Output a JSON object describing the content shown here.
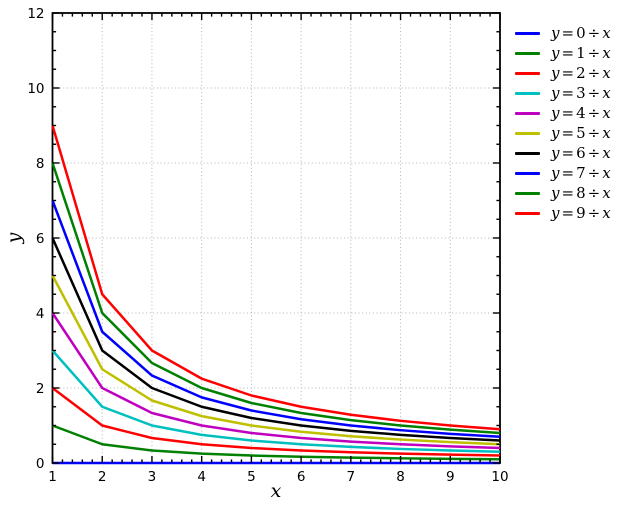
{
  "figure": {
    "background": "#ffffff",
    "xlabel": "x",
    "ylabel": "y"
  },
  "chart_data": {
    "type": "line",
    "title": "",
    "xlabel": "x",
    "ylabel": "y",
    "xlim": [
      1,
      10
    ],
    "ylim": [
      0,
      12
    ],
    "x": [
      1,
      2,
      3,
      4,
      5,
      6,
      7,
      8,
      9,
      10
    ],
    "x_major_ticks": [
      1,
      2,
      3,
      4,
      5,
      6,
      7,
      8,
      9,
      10
    ],
    "x_tick_labels": [
      "1",
      "2",
      "3",
      "4",
      "5",
      "6",
      "7",
      "8",
      "9",
      "10"
    ],
    "y_major_ticks": [
      0,
      2,
      4,
      6,
      8,
      10,
      12
    ],
    "y_tick_labels": [
      "0",
      "2",
      "4",
      "6",
      "8",
      "10",
      "12"
    ],
    "x_minor_step": 0.2,
    "y_minor_step": 0.5,
    "grid": true,
    "grid_color": "#b4b4b4",
    "spine_color": "#000000",
    "tick_color": "#000000",
    "legend_position": "outside-right",
    "series": [
      {
        "name": "y = 0 ÷ x",
        "k": 0,
        "color": "#0000ff",
        "values": [
          0,
          0,
          0,
          0,
          0,
          0,
          0,
          0,
          0,
          0
        ]
      },
      {
        "name": "y = 1 ÷ x",
        "k": 1,
        "color": "#008000",
        "values": [
          1,
          0.5,
          0.3333,
          0.25,
          0.2,
          0.1667,
          0.1429,
          0.125,
          0.1111,
          0.1
        ]
      },
      {
        "name": "y = 2 ÷ x",
        "k": 2,
        "color": "#ff0000",
        "values": [
          2,
          1,
          0.6667,
          0.5,
          0.4,
          0.3333,
          0.2857,
          0.25,
          0.2222,
          0.2
        ]
      },
      {
        "name": "y = 3 ÷ x",
        "k": 3,
        "color": "#00bfbf",
        "values": [
          3,
          1.5,
          1,
          0.75,
          0.6,
          0.5,
          0.4286,
          0.375,
          0.3333,
          0.3
        ]
      },
      {
        "name": "y = 4 ÷ x",
        "k": 4,
        "color": "#bf00bf",
        "values": [
          4,
          2,
          1.3333,
          1,
          0.8,
          0.6667,
          0.5714,
          0.5,
          0.4444,
          0.4
        ]
      },
      {
        "name": "y = 5 ÷ x",
        "k": 5,
        "color": "#bfbf00",
        "values": [
          5,
          2.5,
          1.6667,
          1.25,
          1,
          0.8333,
          0.7143,
          0.625,
          0.5556,
          0.5
        ]
      },
      {
        "name": "y = 6 ÷ x",
        "k": 6,
        "color": "#000000",
        "values": [
          6,
          3,
          2,
          1.5,
          1.2,
          1,
          0.8571,
          0.75,
          0.6667,
          0.6
        ]
      },
      {
        "name": "y = 7 ÷ x",
        "k": 7,
        "color": "#0000ff",
        "values": [
          7,
          3.5,
          2.3333,
          1.75,
          1.4,
          1.1667,
          1,
          0.875,
          0.7778,
          0.7
        ]
      },
      {
        "name": "y = 8 ÷ x",
        "k": 8,
        "color": "#008000",
        "values": [
          8,
          4,
          2.6667,
          2,
          1.6,
          1.3333,
          1.1429,
          1,
          0.8889,
          0.8
        ]
      },
      {
        "name": "y = 9 ÷ x",
        "k": 9,
        "color": "#ff0000",
        "values": [
          9,
          4.5,
          3,
          2.25,
          1.8,
          1.5,
          1.2857,
          1.125,
          1,
          0.9
        ]
      }
    ]
  }
}
